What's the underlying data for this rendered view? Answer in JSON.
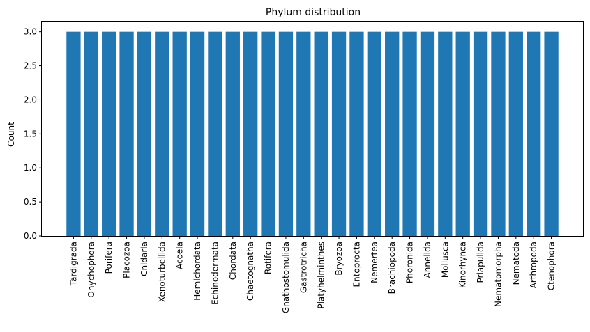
{
  "chart_data": {
    "type": "bar",
    "title": "Phylum distribution",
    "xlabel": "",
    "ylabel": "Count",
    "ylim": [
      0,
      3.15
    ],
    "yticks": [
      0.0,
      0.5,
      1.0,
      1.5,
      2.0,
      2.5,
      3.0
    ],
    "ytick_labels": [
      "0.0",
      "0.5",
      "1.0",
      "1.5",
      "2.0",
      "2.5",
      "3.0"
    ],
    "grid": false,
    "bar_color": "#1f77b4",
    "categories": [
      "Tardigrada",
      "Onychophora",
      "Porifera",
      "Placozoa",
      "Cnidaria",
      "Xenoturbellida",
      "Acoela",
      "Hemichordata",
      "Echinodermata",
      "Chordata",
      "Chaetognatha",
      "Rotifera",
      "Gnathostomulida",
      "Gastrotricha",
      "Platyhelminthes",
      "Bryozoa",
      "Entoprocta",
      "Nemertea",
      "Brachiopoda",
      "Phoronida",
      "Annelida",
      "Mollusca",
      "Kinorhynca",
      "Priapulida",
      "Nematomorpha",
      "Nematoda",
      "Arthropoda",
      "Ctenophora"
    ],
    "values": [
      3,
      3,
      3,
      3,
      3,
      3,
      3,
      3,
      3,
      3,
      3,
      3,
      3,
      3,
      3,
      3,
      3,
      3,
      3,
      3,
      3,
      3,
      3,
      3,
      3,
      3,
      3,
      3
    ]
  }
}
